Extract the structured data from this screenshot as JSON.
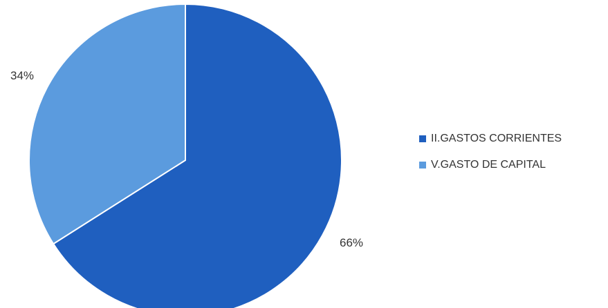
{
  "chart_data": {
    "type": "pie",
    "title": "",
    "legend_position": "right",
    "series": [
      {
        "values": [
          66,
          34
        ],
        "categories": [
          "II.GASTOS CORRIENTES",
          "V.GASTO DE CAPITAL"
        ],
        "colors": [
          "#1f5fbf",
          "#5b9bde"
        ],
        "data_labels": [
          "66%",
          "34%"
        ]
      }
    ]
  }
}
